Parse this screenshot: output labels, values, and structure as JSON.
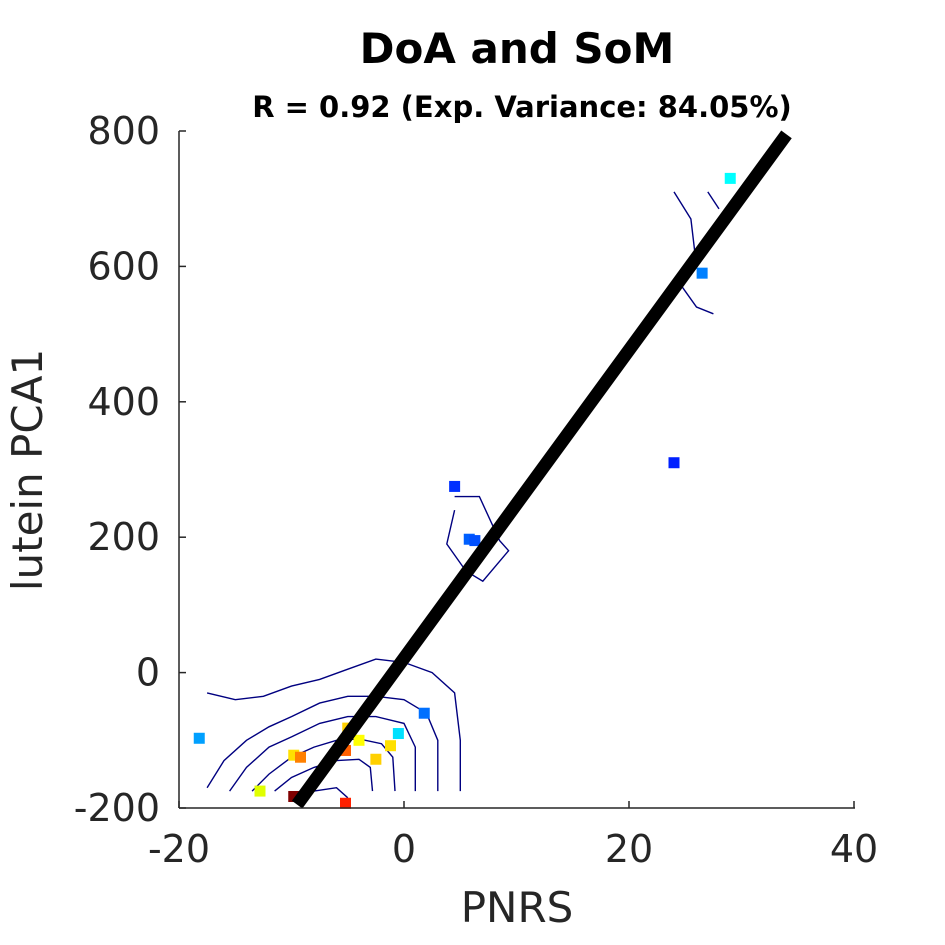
{
  "chart_data": {
    "type": "scatter",
    "title": "DoA and SoM",
    "subtitle": "R = 0.92 (Exp. Variance: 84.05%)",
    "xlabel": "PNRS",
    "ylabel": "lutein PCA1",
    "xlim": [
      -20,
      40
    ],
    "ylim": [
      -200,
      800
    ],
    "xticks": [
      "-20",
      "0",
      "20",
      "40"
    ],
    "yticks": [
      "800",
      "600",
      "400",
      "200",
      "0",
      "-200"
    ],
    "xtick_values": [
      -20,
      0,
      20,
      40
    ],
    "ytick_values": [
      800,
      600,
      400,
      200,
      0,
      -200
    ],
    "grid": false,
    "regression_line": {
      "x": [
        -9.5,
        34.0
      ],
      "y": [
        -195,
        795
      ],
      "color": "#000000"
    },
    "points": [
      {
        "x": 29.0,
        "y": 730,
        "color": "#00ffff"
      },
      {
        "x": 26.5,
        "y": 590,
        "color": "#0080ff"
      },
      {
        "x": 24.0,
        "y": 310,
        "color": "#0020ff"
      },
      {
        "x": 4.5,
        "y": 275,
        "color": "#0030ff"
      },
      {
        "x": 5.8,
        "y": 197,
        "color": "#0060ff"
      },
      {
        "x": 6.3,
        "y": 195,
        "color": "#0050ff"
      },
      {
        "x": 1.8,
        "y": -60,
        "color": "#0070ff"
      },
      {
        "x": -18.2,
        "y": -97,
        "color": "#00a0ff"
      },
      {
        "x": -0.5,
        "y": -90,
        "color": "#00e0ff"
      },
      {
        "x": -1.2,
        "y": -108,
        "color": "#ffe000"
      },
      {
        "x": -4.0,
        "y": -100,
        "color": "#ffff00"
      },
      {
        "x": -5.2,
        "y": -115,
        "color": "#ff6000"
      },
      {
        "x": -5.0,
        "y": -82,
        "color": "#ffd000"
      },
      {
        "x": -2.5,
        "y": -128,
        "color": "#ffd000"
      },
      {
        "x": -9.8,
        "y": -122,
        "color": "#ffe000"
      },
      {
        "x": -9.2,
        "y": -125,
        "color": "#ff8000"
      },
      {
        "x": -12.8,
        "y": -175,
        "color": "#e0ff00"
      },
      {
        "x": -9.8,
        "y": -183,
        "color": "#800000"
      },
      {
        "x": -5.2,
        "y": -193,
        "color": "#ff2000"
      }
    ],
    "contours": [
      [
        [
          -17.5,
          -30
        ],
        [
          -15,
          -40
        ],
        [
          -12.5,
          -35
        ],
        [
          -10,
          -20
        ],
        [
          -7.5,
          -10
        ],
        [
          -5,
          5
        ],
        [
          -2.5,
          20
        ],
        [
          0,
          15
        ],
        [
          2.5,
          0
        ],
        [
          4.5,
          -30
        ],
        [
          5,
          -100
        ],
        [
          5,
          -175
        ]
      ],
      [
        [
          -17.5,
          -170
        ],
        [
          -16,
          -130
        ],
        [
          -14,
          -100
        ],
        [
          -12,
          -80
        ],
        [
          -10,
          -65
        ],
        [
          -7.5,
          -45
        ],
        [
          -5,
          -35
        ],
        [
          -2.5,
          -35
        ],
        [
          0,
          -40
        ],
        [
          2,
          -60
        ],
        [
          3,
          -100
        ],
        [
          3,
          -175
        ]
      ],
      [
        [
          -15.5,
          -175
        ],
        [
          -14,
          -140
        ],
        [
          -12,
          -110
        ],
        [
          -10,
          -95
        ],
        [
          -7.5,
          -75
        ],
        [
          -5,
          -65
        ],
        [
          -2.5,
          -65
        ],
        [
          0,
          -75
        ],
        [
          1,
          -110
        ],
        [
          1,
          -175
        ]
      ],
      [
        [
          -13.5,
          -175
        ],
        [
          -12,
          -150
        ],
        [
          -10,
          -125
        ],
        [
          -8,
          -110
        ],
        [
          -6,
          -100
        ],
        [
          -4,
          -98
        ],
        [
          -2,
          -105
        ],
        [
          -1,
          -125
        ],
        [
          -0.8,
          -175
        ]
      ],
      [
        [
          -11.5,
          -175
        ],
        [
          -10,
          -155
        ],
        [
          -8,
          -140
        ],
        [
          -6,
          -130
        ],
        [
          -4,
          -128
        ],
        [
          -3,
          -140
        ],
        [
          -2.8,
          -175
        ]
      ],
      [
        [
          -10,
          -190
        ],
        [
          -8,
          -175
        ],
        [
          -6,
          -170
        ],
        [
          -5,
          -185
        ]
      ],
      [
        [
          4.5,
          240
        ],
        [
          3.8,
          190
        ],
        [
          5.5,
          150
        ],
        [
          7,
          135
        ],
        [
          9.3,
          180
        ],
        [
          8.5,
          195
        ],
        [
          6.7,
          260
        ],
        [
          4.5,
          260
        ]
      ],
      [
        [
          24,
          710
        ],
        [
          25.5,
          670
        ],
        [
          26,
          600
        ],
        [
          24.5,
          575
        ],
        [
          26,
          540
        ],
        [
          27.5,
          530
        ]
      ],
      [
        [
          27,
          710
        ],
        [
          28,
          685
        ]
      ]
    ],
    "contour_color": "#000080"
  }
}
